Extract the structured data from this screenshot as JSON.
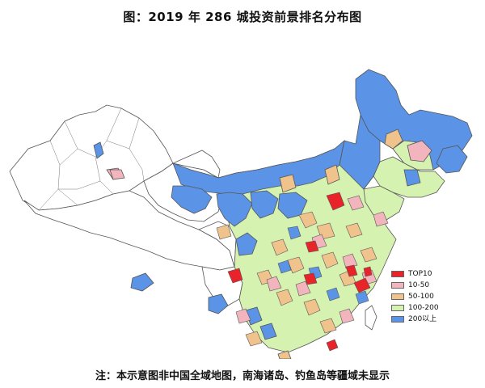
{
  "title": "图：2019 年 286 城投资前景排名分布图",
  "note": "注：本示意图非中国全域地图，南海诸岛、钓鱼岛等疆域未显示",
  "legend": [
    {
      "label": "TOP10",
      "color": "#e8232a"
    },
    {
      "label": "10-50",
      "color": "#f2b5bd"
    },
    {
      "label": "50-100",
      "color": "#f0c38c"
    },
    {
      "label": "100-200",
      "color": "#d6f2b0"
    },
    {
      "label": "200以上",
      "color": "#5b94e6"
    }
  ],
  "colors": {
    "border": "#555555",
    "unranked": "#ffffff"
  }
}
